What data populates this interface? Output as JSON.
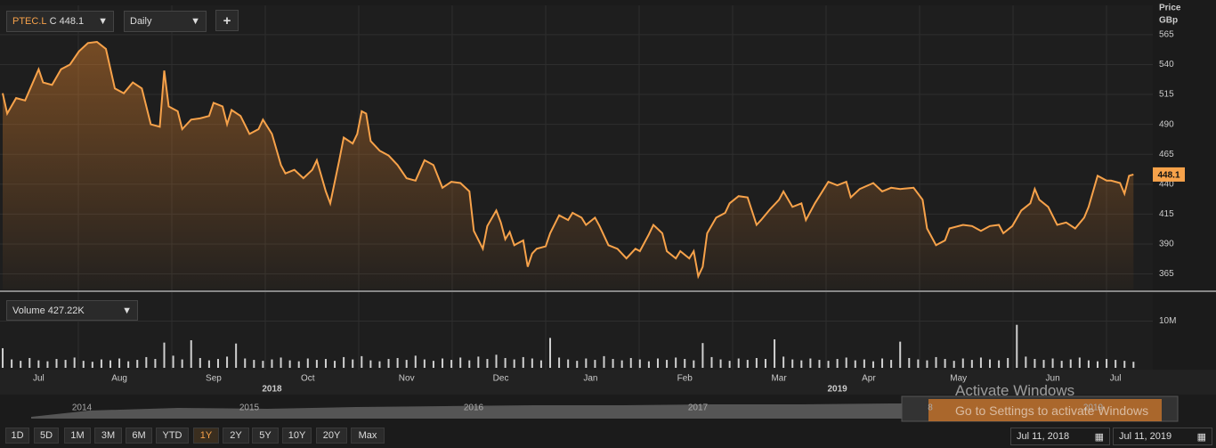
{
  "toolbar": {
    "interval": "Daily",
    "add": "+"
  },
  "chart_data": [
    {
      "type": "line",
      "series": [
        {
          "name": "PTEC.L",
          "color": "#f7a24a",
          "x": [
            0,
            1,
            3,
            5,
            8,
            9,
            11,
            13,
            15,
            17,
            19,
            21,
            23,
            25,
            27,
            29,
            31,
            33,
            35,
            36,
            37,
            39,
            40,
            42,
            44,
            46,
            47,
            49,
            50,
            51,
            53,
            55,
            57,
            58,
            60,
            62,
            63,
            65,
            67,
            69,
            70,
            72,
            73,
            75,
            76,
            78,
            79,
            80,
            81,
            82,
            84,
            86,
            88,
            90,
            92,
            94,
            96,
            98,
            100,
            102,
            104,
            105,
            107,
            108,
            110,
            111,
            112,
            113,
            114,
            116,
            117,
            118,
            119,
            121,
            122,
            124,
            126,
            127,
            129,
            130,
            132,
            133,
            135,
            137,
            139,
            141,
            142,
            144,
            145,
            147,
            148,
            150,
            151,
            153,
            154,
            155,
            156,
            157,
            159,
            161,
            162,
            164,
            166,
            168,
            169,
            171,
            173,
            174,
            176,
            178,
            179,
            181,
            182,
            184,
            186,
            188,
            189,
            191,
            194,
            196,
            198,
            200,
            203,
            205,
            206,
            208,
            210,
            211,
            214,
            216,
            218,
            220,
            222,
            223,
            225,
            227,
            229,
            230,
            231,
            233,
            235,
            237,
            239,
            241,
            242,
            244,
            246,
            247,
            249,
            250,
            251,
            252
          ],
          "values": [
            516,
            499,
            512,
            510,
            536,
            525,
            523,
            536,
            540,
            551,
            558,
            559,
            553,
            520,
            516,
            525,
            520,
            490,
            488,
            535,
            505,
            501,
            486,
            494,
            495,
            497,
            508,
            505,
            490,
            502,
            497,
            482,
            486,
            494,
            482,
            456,
            449,
            452,
            445,
            452,
            460,
            434,
            424,
            460,
            479,
            474,
            482,
            501,
            499,
            476,
            468,
            464,
            456,
            445,
            443,
            460,
            456,
            437,
            442,
            441,
            434,
            401,
            386,
            405,
            418,
            408,
            394,
            400,
            389,
            393,
            371,
            382,
            386,
            388,
            399,
            414,
            410,
            416,
            412,
            406,
            412,
            405,
            389,
            386,
            378,
            386,
            384,
            398,
            406,
            399,
            384,
            378,
            384,
            378,
            384,
            363,
            371,
            399,
            412,
            416,
            424,
            430,
            429,
            406,
            410,
            419,
            427,
            434,
            421,
            424,
            410,
            424,
            430,
            442,
            439,
            442,
            429,
            436,
            441,
            434,
            437,
            436,
            437,
            427,
            403,
            389,
            393,
            403,
            406,
            405,
            401,
            405,
            406,
            399,
            405,
            418,
            424,
            436,
            427,
            421,
            406,
            408,
            403,
            412,
            421,
            447,
            443,
            443,
            441,
            432,
            447,
            448.1
          ]
        }
      ],
      "close_label": "C",
      "last_price": 448.1,
      "y_axis_label": [
        "Price",
        "GBp"
      ],
      "ylim": [
        352,
        588
      ],
      "yticks": [
        365,
        390,
        415,
        440,
        465,
        490,
        515,
        540,
        565
      ],
      "xlim": [
        -0.6,
        256.3
      ],
      "xticks": [
        {
          "value": 8,
          "label": "Jul"
        },
        {
          "value": 26,
          "label": "Aug"
        },
        {
          "value": 47,
          "label": "Sep"
        },
        {
          "value": 68,
          "label": "Oct"
        },
        {
          "value": 90,
          "label": "Nov"
        },
        {
          "value": 111,
          "label": "Dec"
        },
        {
          "value": 131,
          "label": "Jan"
        },
        {
          "value": 152,
          "label": "Feb"
        },
        {
          "value": 173,
          "label": "Mar"
        },
        {
          "value": 193,
          "label": "Apr"
        },
        {
          "value": 213,
          "label": "May"
        },
        {
          "value": 234,
          "label": "Jun"
        },
        {
          "value": 248,
          "label": "Jul"
        }
      ],
      "year_ticks": [
        {
          "value": 60,
          "label": "2018"
        },
        {
          "value": 186,
          "label": "2019"
        }
      ]
    },
    {
      "type": "bar",
      "series": [
        {
          "name": "Volume",
          "color": "#cfcfcf",
          "x": [
            0,
            2,
            4,
            6,
            8,
            10,
            12,
            14,
            16,
            18,
            20,
            22,
            24,
            26,
            28,
            30,
            32,
            34,
            36,
            38,
            40,
            42,
            44,
            46,
            48,
            50,
            52,
            54,
            56,
            58,
            60,
            62,
            64,
            66,
            68,
            70,
            72,
            74,
            76,
            78,
            80,
            82,
            84,
            86,
            88,
            90,
            92,
            94,
            96,
            98,
            100,
            102,
            104,
            106,
            108,
            110,
            112,
            114,
            116,
            118,
            120,
            122,
            124,
            126,
            128,
            130,
            132,
            134,
            136,
            138,
            140,
            142,
            144,
            146,
            148,
            150,
            152,
            154,
            156,
            158,
            160,
            162,
            164,
            166,
            168,
            170,
            172,
            174,
            176,
            178,
            180,
            182,
            184,
            186,
            188,
            190,
            192,
            194,
            196,
            198,
            200,
            202,
            204,
            206,
            208,
            210,
            212,
            214,
            216,
            218,
            220,
            222,
            224,
            226,
            228,
            230,
            232,
            234,
            236,
            238,
            240,
            242,
            244,
            246,
            248,
            250,
            252
          ],
          "values": [
            4200000,
            1800000,
            1500000,
            2100000,
            1600000,
            1400000,
            1900000,
            1700000,
            2200000,
            1500000,
            1300000,
            1800000,
            1600000,
            2000000,
            1400000,
            1700000,
            2300000,
            1900000,
            5400000,
            2600000,
            1800000,
            5900000,
            2100000,
            1600000,
            1900000,
            2400000,
            5200000,
            2000000,
            1700000,
            1500000,
            1800000,
            2200000,
            1600000,
            1400000,
            2000000,
            1700000,
            1900000,
            1500000,
            2300000,
            1800000,
            2500000,
            1600000,
            1400000,
            1900000,
            2100000,
            1700000,
            2600000,
            1800000,
            1500000,
            2000000,
            1700000,
            2200000,
            1600000,
            2400000,
            1900000,
            2800000,
            2100000,
            1800000,
            2300000,
            2000000,
            1600000,
            6400000,
            2200000,
            1800000,
            1500000,
            2000000,
            1700000,
            2500000,
            1900000,
            1600000,
            2100000,
            1800000,
            1400000,
            2000000,
            1700000,
            2200000,
            1900000,
            1600000,
            5300000,
            2300000,
            1800000,
            1500000,
            2000000,
            1700000,
            2100000,
            1900000,
            6100000,
            2400000,
            1800000,
            1600000,
            2000000,
            1700000,
            1500000,
            1900000,
            2200000,
            1600000,
            1800000,
            1400000,
            2000000,
            1700000,
            5600000,
            2100000,
            1800000,
            1600000,
            2300000,
            1900000,
            1500000,
            2000000,
            1700000,
            2200000,
            1800000,
            1600000,
            2100000,
            9200000,
            2400000,
            1900000,
            1700000,
            2000000,
            1500000,
            1800000,
            2200000,
            1600000,
            1400000,
            1900000,
            1700000,
            1500000,
            1300000
          ]
        }
      ],
      "readout": "427.22K",
      "ylim": [
        0,
        16000000
      ],
      "yticks": [
        {
          "value": 10000000,
          "label": "10M"
        }
      ]
    }
  ],
  "navigator": {
    "years": [
      "2014",
      "2015",
      "2016",
      "2017",
      "8",
      "2019"
    ]
  },
  "range_buttons": [
    "1D",
    "5D",
    "1M",
    "3M",
    "6M",
    "YTD",
    "1Y",
    "2Y",
    "5Y",
    "10Y",
    "20Y",
    "Max"
  ],
  "selected": "1Y",
  "date_range": [
    "Jul 11, 2018",
    "Jul 11, 2019"
  ],
  "watermark": [
    "Activate Windows",
    "Go to Settings to activate Windows"
  ]
}
